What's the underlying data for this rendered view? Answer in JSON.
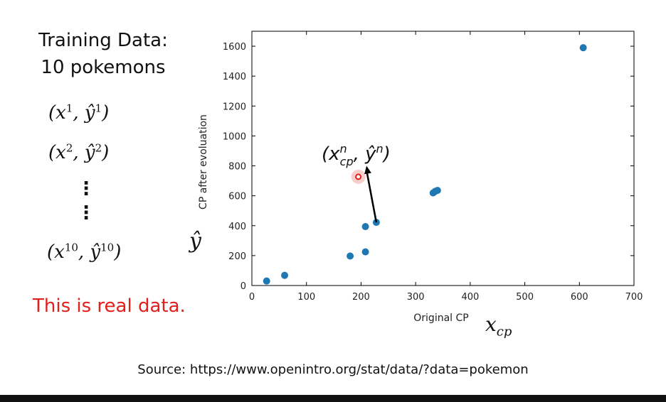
{
  "left_panel": {
    "title_line1": "Training Data:",
    "title_line2": "10 pokemons",
    "tuples": [
      {
        "base": "(x",
        "sup1": "1",
        "mid": ", ŷ",
        "sup2": "1",
        "end": ")"
      },
      {
        "base": "(x",
        "sup1": "2",
        "mid": ", ŷ",
        "sup2": "2",
        "end": ")"
      },
      {
        "base": "(x",
        "sup1": "10",
        "mid": ", ŷ",
        "sup2": "10",
        "end": ")"
      }
    ],
    "dots": "⋮",
    "note": "This is real data.",
    "note_color": "#e0201b"
  },
  "annotations": {
    "y_hat": "ŷ",
    "x_cp": "x",
    "x_cp_sub": "cp",
    "point_label_open": "(x",
    "point_label_sup": "n",
    "point_label_sub": "cp",
    "point_label_mid": ", ŷ",
    "point_label_sup2": "n",
    "point_label_close": ")"
  },
  "source": "Source: https://www.openintro.org/stat/data/?data=pokemon",
  "chart_data": {
    "type": "scatter",
    "title": "",
    "xlabel": "Original CP",
    "ylabel": "CP after evoluation",
    "xlim": [
      0,
      700
    ],
    "ylim": [
      0,
      1700
    ],
    "xticks": [
      0,
      100,
      200,
      300,
      400,
      500,
      600,
      700
    ],
    "yticks": [
      0,
      200,
      400,
      600,
      800,
      1000,
      1200,
      1400,
      1600
    ],
    "grid": false,
    "series": [
      {
        "color": "#1f77b4",
        "points": [
          {
            "x": 27,
            "y": 30
          },
          {
            "x": 60,
            "y": 68
          },
          {
            "x": 180,
            "y": 197
          },
          {
            "x": 208,
            "y": 225
          },
          {
            "x": 208,
            "y": 394
          },
          {
            "x": 228,
            "y": 422
          },
          {
            "x": 332,
            "y": 619
          },
          {
            "x": 336,
            "y": 630
          },
          {
            "x": 340,
            "y": 636
          },
          {
            "x": 607,
            "y": 1590
          }
        ]
      }
    ],
    "highlight": {
      "x": 195,
      "y": 727,
      "color": "#e0201b"
    },
    "arrow": {
      "from": {
        "x": 228,
        "y": 422
      },
      "to": {
        "x": 210,
        "y": 800
      }
    }
  }
}
